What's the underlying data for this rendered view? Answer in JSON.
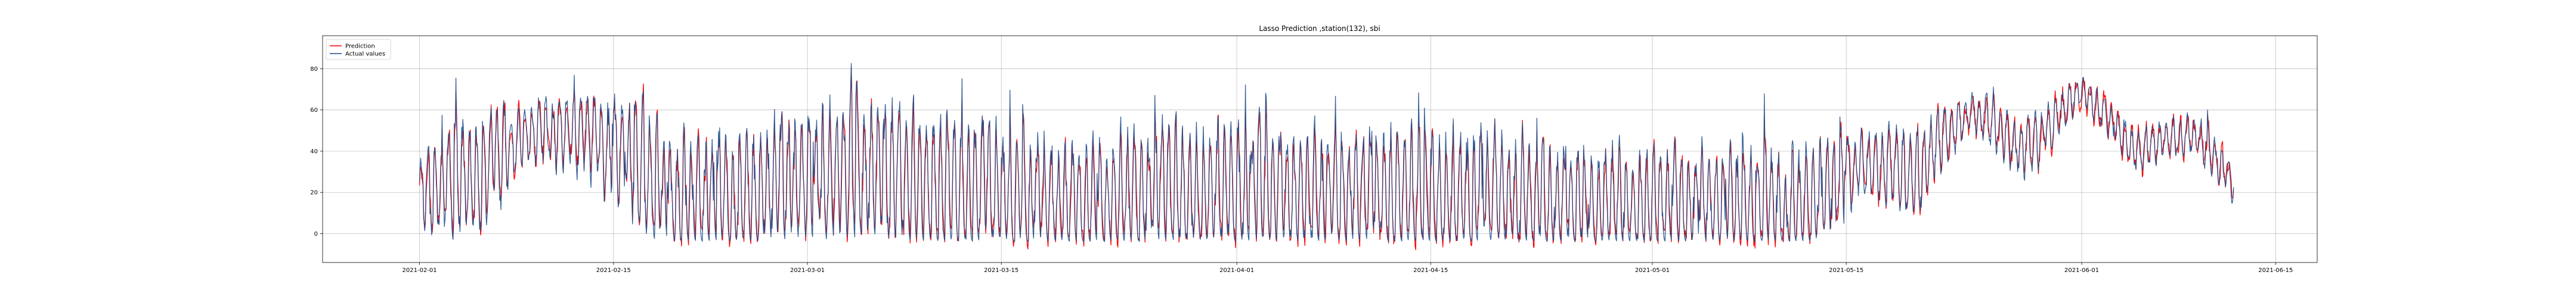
{
  "chart_data": {
    "type": "line",
    "title": "Lasso Prediction ,station(132), sbi",
    "xlabel": "",
    "ylabel": "",
    "x_range": [
      "2021-01-25",
      "2021-06-18"
    ],
    "data_range": [
      "2021-02-01",
      "2021-06-12"
    ],
    "ylim": [
      -14,
      96
    ],
    "grid": true,
    "legend_position": "upper-left",
    "x_ticks": [
      "2021-02-01",
      "2021-02-15",
      "2021-03-01",
      "2021-03-15",
      "2021-04-01",
      "2021-04-15",
      "2021-05-01",
      "2021-05-15",
      "2021-06-01",
      "2021-06-15"
    ],
    "y_ticks": [
      0,
      20,
      40,
      60,
      80
    ],
    "series": [
      {
        "name": "Prediction",
        "color": "#ff0000"
      },
      {
        "name": "Actual values",
        "color": "#1f4e8c"
      }
    ],
    "sampling": "approximately hourly; values range about -8 to 92",
    "anchor_points": {
      "x": [
        "2021-02-01",
        "2021-02-05",
        "2021-02-09",
        "2021-02-13",
        "2021-02-17",
        "2021-02-21",
        "2021-02-25",
        "2021-03-01",
        "2021-03-05",
        "2021-03-09",
        "2021-03-13",
        "2021-03-17",
        "2021-03-21",
        "2021-03-25",
        "2021-03-29",
        "2021-04-02",
        "2021-04-06",
        "2021-04-10",
        "2021-04-14",
        "2021-04-18",
        "2021-04-22",
        "2021-04-26",
        "2021-04-30",
        "2021-05-04",
        "2021-05-08",
        "2021-05-12",
        "2021-05-16",
        "2021-05-20",
        "2021-05-24",
        "2021-05-28",
        "2021-06-01",
        "2021-06-05",
        "2021-06-09",
        "2021-06-12"
      ],
      "baseline": [
        18,
        28,
        50,
        50,
        28,
        12,
        20,
        25,
        30,
        22,
        18,
        15,
        15,
        18,
        20,
        18,
        18,
        18,
        15,
        15,
        15,
        12,
        12,
        12,
        10,
        10,
        35,
        30,
        60,
        40,
        70,
        40,
        50,
        25
      ],
      "swing": [
        20,
        30,
        15,
        20,
        35,
        35,
        35,
        35,
        35,
        40,
        35,
        35,
        30,
        35,
        35,
        35,
        35,
        35,
        35,
        35,
        30,
        30,
        30,
        30,
        30,
        35,
        15,
        20,
        10,
        15,
        8,
        10,
        10,
        10
      ]
    }
  }
}
